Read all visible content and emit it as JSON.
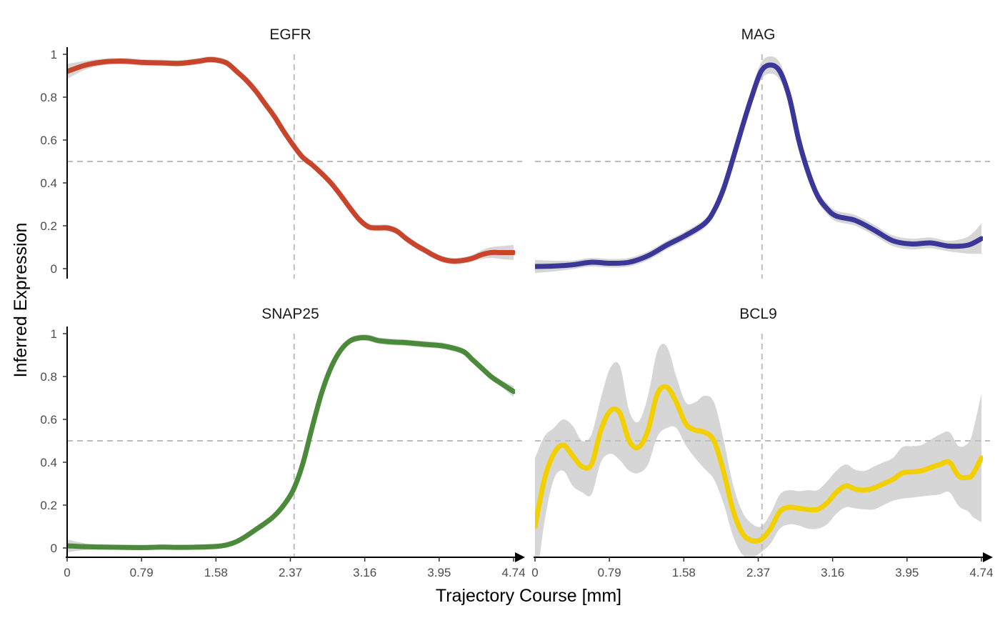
{
  "chart_data": {
    "type": "line",
    "ylabel": "Inferred Expression",
    "xlabel": "Trajectory Course [mm]",
    "xlim": [
      0,
      4.74
    ],
    "ylim": [
      0,
      1
    ],
    "x_ticks": [
      "0",
      "0.79",
      "1.58",
      "2.37",
      "3.16",
      "3.95",
      "4.74"
    ],
    "x_tick_values": [
      0,
      0.79,
      1.58,
      2.37,
      3.16,
      3.95,
      4.74
    ],
    "y_ticks": [
      "0",
      "0.2",
      "0.4",
      "0.6",
      "0.8",
      "1"
    ],
    "y_tick_values": [
      0,
      0.2,
      0.4,
      0.6,
      0.8,
      1
    ],
    "reference_lines": {
      "horizontal_y": 0.5,
      "vertical_x": 2.41
    },
    "grid": false,
    "panels": [
      {
        "title": "EGFR",
        "color": "#C8452C",
        "x": [
          0,
          0.2,
          0.4,
          0.6,
          0.8,
          1.0,
          1.2,
          1.4,
          1.5,
          1.6,
          1.7,
          1.8,
          1.9,
          2.0,
          2.1,
          2.2,
          2.3,
          2.41,
          2.5,
          2.6,
          2.7,
          2.8,
          2.9,
          3.0,
          3.1,
          3.2,
          3.3,
          3.4,
          3.5,
          3.6,
          3.7,
          3.8,
          3.9,
          4.0,
          4.1,
          4.2,
          4.3,
          4.4,
          4.5,
          4.6,
          4.74
        ],
        "values": [
          0.92,
          0.95,
          0.965,
          0.968,
          0.962,
          0.96,
          0.958,
          0.968,
          0.975,
          0.972,
          0.958,
          0.92,
          0.88,
          0.83,
          0.77,
          0.71,
          0.64,
          0.57,
          0.52,
          0.485,
          0.445,
          0.4,
          0.345,
          0.285,
          0.23,
          0.195,
          0.19,
          0.19,
          0.175,
          0.14,
          0.11,
          0.085,
          0.06,
          0.042,
          0.035,
          0.038,
          0.048,
          0.065,
          0.075,
          0.075,
          0.075
        ],
        "band_halfwidth": [
          0.035,
          0.02,
          0.015,
          0.015,
          0.015,
          0.015,
          0.015,
          0.015,
          0.015,
          0.015,
          0.015,
          0.015,
          0.015,
          0.015,
          0.015,
          0.015,
          0.015,
          0.015,
          0.015,
          0.015,
          0.015,
          0.015,
          0.015,
          0.015,
          0.015,
          0.015,
          0.015,
          0.015,
          0.015,
          0.015,
          0.015,
          0.015,
          0.015,
          0.015,
          0.015,
          0.015,
          0.015,
          0.02,
          0.025,
          0.03,
          0.035
        ],
        "x_axis": false
      },
      {
        "title": "MAG",
        "color": "#3A3799",
        "x": [
          0,
          0.2,
          0.4,
          0.6,
          0.8,
          1.0,
          1.2,
          1.4,
          1.6,
          1.8,
          1.9,
          2.0,
          2.1,
          2.2,
          2.3,
          2.4,
          2.5,
          2.6,
          2.7,
          2.8,
          2.9,
          3.0,
          3.1,
          3.2,
          3.4,
          3.6,
          3.8,
          4.0,
          4.2,
          4.4,
          4.6,
          4.74
        ],
        "values": [
          0.01,
          0.012,
          0.018,
          0.03,
          0.025,
          0.03,
          0.06,
          0.11,
          0.155,
          0.21,
          0.27,
          0.37,
          0.51,
          0.66,
          0.8,
          0.92,
          0.95,
          0.92,
          0.8,
          0.6,
          0.45,
          0.34,
          0.28,
          0.245,
          0.225,
          0.18,
          0.13,
          0.115,
          0.12,
          0.105,
          0.11,
          0.14
        ],
        "band_halfwidth": [
          0.03,
          0.025,
          0.02,
          0.02,
          0.02,
          0.02,
          0.02,
          0.02,
          0.02,
          0.02,
          0.02,
          0.025,
          0.025,
          0.03,
          0.035,
          0.04,
          0.04,
          0.04,
          0.03,
          0.03,
          0.025,
          0.025,
          0.025,
          0.025,
          0.025,
          0.025,
          0.025,
          0.025,
          0.025,
          0.025,
          0.04,
          0.07
        ],
        "x_axis": false
      },
      {
        "title": "SNAP25",
        "color": "#4A8A3A",
        "x": [
          0,
          0.2,
          0.4,
          0.6,
          0.8,
          1.0,
          1.2,
          1.4,
          1.6,
          1.7,
          1.8,
          1.9,
          2.0,
          2.1,
          2.2,
          2.3,
          2.4,
          2.5,
          2.6,
          2.7,
          2.8,
          2.9,
          3.0,
          3.1,
          3.2,
          3.3,
          3.4,
          3.5,
          3.6,
          3.8,
          4.0,
          4.2,
          4.3,
          4.4,
          4.5,
          4.6,
          4.74
        ],
        "values": [
          0.01,
          0.006,
          0.004,
          0.003,
          0.002,
          0.004,
          0.003,
          0.004,
          0.008,
          0.015,
          0.03,
          0.055,
          0.085,
          0.115,
          0.15,
          0.2,
          0.27,
          0.39,
          0.56,
          0.72,
          0.84,
          0.92,
          0.965,
          0.98,
          0.98,
          0.968,
          0.963,
          0.96,
          0.958,
          0.95,
          0.942,
          0.918,
          0.88,
          0.84,
          0.8,
          0.77,
          0.73
        ],
        "band_halfwidth": [
          0.03,
          0.015,
          0.012,
          0.012,
          0.012,
          0.012,
          0.012,
          0.012,
          0.012,
          0.012,
          0.012,
          0.012,
          0.012,
          0.012,
          0.012,
          0.012,
          0.015,
          0.015,
          0.015,
          0.015,
          0.015,
          0.015,
          0.015,
          0.015,
          0.015,
          0.015,
          0.015,
          0.015,
          0.015,
          0.015,
          0.015,
          0.015,
          0.015,
          0.015,
          0.015,
          0.015,
          0.025
        ],
        "x_axis": true
      },
      {
        "title": "BCL9",
        "color": "#F2D000",
        "x": [
          0,
          0.1,
          0.2,
          0.3,
          0.4,
          0.5,
          0.6,
          0.7,
          0.8,
          0.9,
          1.0,
          1.1,
          1.2,
          1.3,
          1.4,
          1.5,
          1.6,
          1.7,
          1.8,
          1.9,
          2.0,
          2.1,
          2.2,
          2.3,
          2.4,
          2.5,
          2.6,
          2.7,
          2.8,
          2.9,
          3.0,
          3.1,
          3.2,
          3.3,
          3.4,
          3.5,
          3.6,
          3.7,
          3.8,
          3.9,
          4.0,
          4.1,
          4.2,
          4.3,
          4.4,
          4.5,
          4.6,
          4.65,
          4.74
        ],
        "values": [
          0.1,
          0.32,
          0.44,
          0.48,
          0.43,
          0.38,
          0.39,
          0.55,
          0.64,
          0.63,
          0.5,
          0.47,
          0.55,
          0.72,
          0.75,
          0.68,
          0.58,
          0.55,
          0.54,
          0.5,
          0.36,
          0.18,
          0.07,
          0.035,
          0.04,
          0.09,
          0.17,
          0.19,
          0.185,
          0.18,
          0.18,
          0.21,
          0.26,
          0.29,
          0.275,
          0.27,
          0.28,
          0.3,
          0.32,
          0.35,
          0.355,
          0.36,
          0.375,
          0.39,
          0.4,
          0.335,
          0.33,
          0.345,
          0.42
        ],
        "band_halfwidth": [
          0.32,
          0.2,
          0.12,
          0.12,
          0.14,
          0.12,
          0.14,
          0.15,
          0.2,
          0.22,
          0.14,
          0.12,
          0.16,
          0.2,
          0.19,
          0.12,
          0.1,
          0.13,
          0.17,
          0.18,
          0.15,
          0.12,
          0.1,
          0.08,
          0.06,
          0.07,
          0.08,
          0.08,
          0.08,
          0.09,
          0.09,
          0.1,
          0.1,
          0.1,
          0.09,
          0.09,
          0.1,
          0.1,
          0.1,
          0.12,
          0.12,
          0.12,
          0.13,
          0.14,
          0.14,
          0.14,
          0.16,
          0.2,
          0.3
        ],
        "x_axis": true
      }
    ]
  }
}
